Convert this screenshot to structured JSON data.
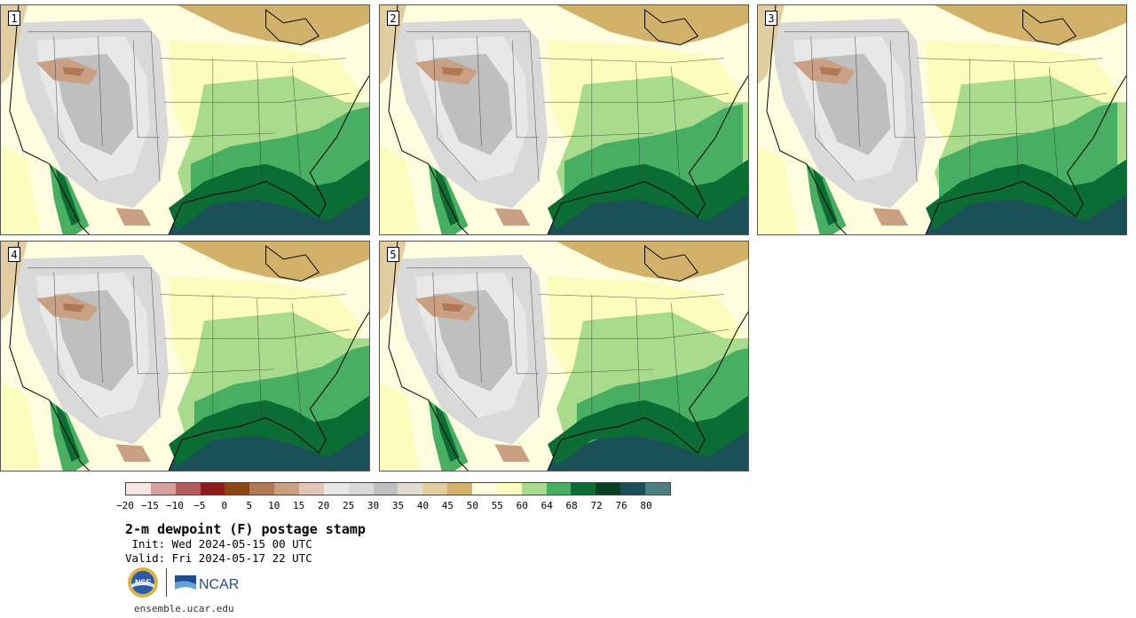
{
  "panels": [
    {
      "label": "1",
      "variant": 0
    },
    {
      "label": "2",
      "variant": 1
    },
    {
      "label": "3",
      "variant": 2
    },
    {
      "label": "4",
      "variant": 3
    },
    {
      "label": "5",
      "variant": 4
    }
  ],
  "colorbar": {
    "colors": [
      "#f5e6e6",
      "#d4a0a0",
      "#b25c5c",
      "#8b1a1a",
      "#8b4513",
      "#b07855",
      "#c9a084",
      "#e2c7b6",
      "#e8e8e8",
      "#d9d9d9",
      "#bfbfbf",
      "#e1dcd3",
      "#e2cda0",
      "#d2b26a",
      "#fffde0",
      "#fcfcbc",
      "#a8dc8c",
      "#48ae61",
      "#0b6d34",
      "#073f25",
      "#1c5058",
      "#4e7f80"
    ],
    "ticks": [
      "−20",
      "−15",
      "−10",
      "−5",
      "0",
      "5",
      "10",
      "15",
      "20",
      "25",
      "30",
      "35",
      "40",
      "45",
      "50",
      "55",
      "60",
      "64",
      "68",
      "72",
      "76",
      "80"
    ]
  },
  "title": "2-m dewpoint (F) postage stamp",
  "init": " Init: Wed 2024-05-15 00 UTC",
  "valid": "Valid: Fri 2024-05-17 22 UTC",
  "logos": {
    "nsf": "NSF",
    "ncar": "NCAR"
  },
  "website": "ensemble.ucar.edu"
}
